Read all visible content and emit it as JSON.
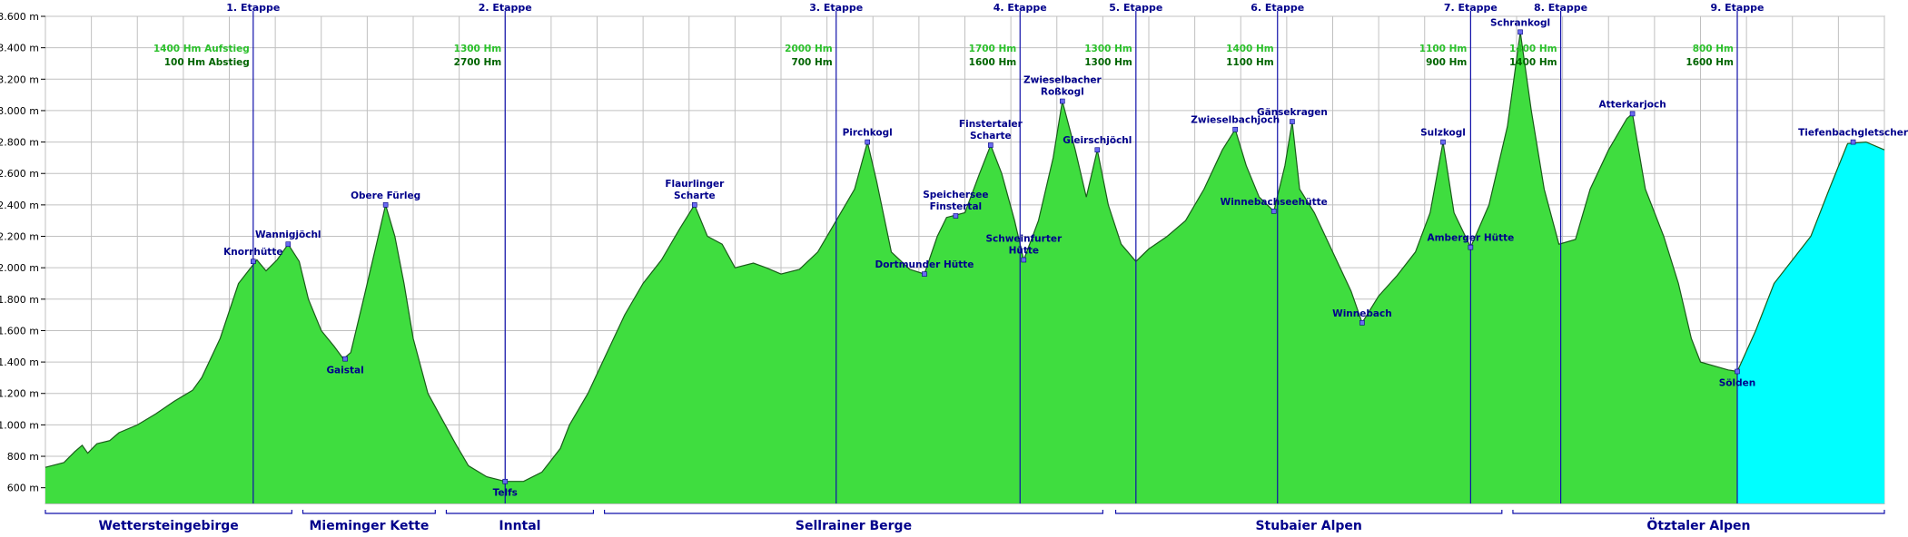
{
  "chart_data": {
    "type": "area",
    "title": "",
    "xlabel": "",
    "ylabel": "",
    "ylim": [
      500,
      3600
    ],
    "xlim": [
      0,
      100
    ],
    "y_unit_suffix": " m",
    "y_ticks": [
      600,
      800,
      1000,
      1200,
      1400,
      1600,
      1800,
      2000,
      2200,
      2400,
      2600,
      2800,
      3000,
      3200,
      3400,
      3600
    ],
    "grid": true,
    "colors": {
      "fill": "#3fdd3f",
      "fill_glacier": "#00ffff",
      "outline": "#1a5c1a",
      "stage_line": "#1010aa",
      "label": "#00008b",
      "gain": "#2bc02b",
      "loss": "#006400",
      "grid": "#c0c0c0"
    },
    "profile": [
      [
        0.0,
        730
      ],
      [
        1.0,
        760
      ],
      [
        1.6,
        830
      ],
      [
        2.0,
        870
      ],
      [
        2.3,
        820
      ],
      [
        2.8,
        880
      ],
      [
        3.5,
        900
      ],
      [
        4.0,
        950
      ],
      [
        5.0,
        1000
      ],
      [
        6.0,
        1070
      ],
      [
        7.0,
        1150
      ],
      [
        8.0,
        1220
      ],
      [
        8.5,
        1300
      ],
      [
        9.5,
        1550
      ],
      [
        10.5,
        1900
      ],
      [
        11.5,
        2050
      ],
      [
        12.0,
        1980
      ],
      [
        12.6,
        2050
      ],
      [
        13.2,
        2150
      ],
      [
        13.8,
        2040
      ],
      [
        14.3,
        1800
      ],
      [
        15.0,
        1600
      ],
      [
        15.7,
        1500
      ],
      [
        16.2,
        1420
      ],
      [
        16.6,
        1460
      ],
      [
        17.3,
        1800
      ],
      [
        18.0,
        2150
      ],
      [
        18.5,
        2400
      ],
      [
        19.0,
        2200
      ],
      [
        19.5,
        1900
      ],
      [
        20.0,
        1550
      ],
      [
        20.8,
        1200
      ],
      [
        21.5,
        1050
      ],
      [
        22.3,
        880
      ],
      [
        23.0,
        740
      ],
      [
        24.0,
        670
      ],
      [
        25.0,
        640
      ],
      [
        26.0,
        640
      ],
      [
        27.0,
        700
      ],
      [
        28.0,
        850
      ],
      [
        28.5,
        1000
      ],
      [
        29.5,
        1200
      ],
      [
        30.5,
        1450
      ],
      [
        31.5,
        1700
      ],
      [
        32.5,
        1900
      ],
      [
        33.5,
        2050
      ],
      [
        34.5,
        2250
      ],
      [
        35.3,
        2400
      ],
      [
        36.0,
        2200
      ],
      [
        36.8,
        2150
      ],
      [
        37.5,
        2000
      ],
      [
        38.5,
        2030
      ],
      [
        39.2,
        2000
      ],
      [
        40.0,
        1960
      ],
      [
        41.0,
        1990
      ],
      [
        42.0,
        2100
      ],
      [
        43.0,
        2300
      ],
      [
        44.0,
        2500
      ],
      [
        44.7,
        2800
      ],
      [
        45.2,
        2550
      ],
      [
        46.0,
        2100
      ],
      [
        47.0,
        1990
      ],
      [
        47.8,
        1960
      ],
      [
        48.5,
        2200
      ],
      [
        49.0,
        2320
      ],
      [
        50.0,
        2350
      ],
      [
        50.8,
        2600
      ],
      [
        51.4,
        2780
      ],
      [
        52.0,
        2600
      ],
      [
        52.7,
        2300
      ],
      [
        53.2,
        2050
      ],
      [
        54.0,
        2300
      ],
      [
        54.8,
        2700
      ],
      [
        55.3,
        3060
      ],
      [
        56.0,
        2750
      ],
      [
        56.6,
        2450
      ],
      [
        57.2,
        2750
      ],
      [
        57.8,
        2400
      ],
      [
        58.5,
        2150
      ],
      [
        59.3,
        2040
      ],
      [
        60.0,
        2120
      ],
      [
        61.0,
        2200
      ],
      [
        62.0,
        2300
      ],
      [
        63.0,
        2500
      ],
      [
        64.0,
        2750
      ],
      [
        64.7,
        2880
      ],
      [
        65.3,
        2650
      ],
      [
        66.0,
        2450
      ],
      [
        66.8,
        2360
      ],
      [
        67.4,
        2650
      ],
      [
        67.8,
        2930
      ],
      [
        68.2,
        2500
      ],
      [
        69.0,
        2350
      ],
      [
        70.0,
        2100
      ],
      [
        71.0,
        1850
      ],
      [
        71.6,
        1650
      ],
      [
        72.5,
        1820
      ],
      [
        73.5,
        1950
      ],
      [
        74.5,
        2100
      ],
      [
        75.3,
        2350
      ],
      [
        76.0,
        2800
      ],
      [
        76.6,
        2350
      ],
      [
        77.5,
        2130
      ],
      [
        78.5,
        2400
      ],
      [
        79.5,
        2900
      ],
      [
        80.2,
        3500
      ],
      [
        80.8,
        3000
      ],
      [
        81.5,
        2500
      ],
      [
        82.3,
        2150
      ],
      [
        83.2,
        2180
      ],
      [
        84.0,
        2500
      ],
      [
        85.0,
        2750
      ],
      [
        86.0,
        2950
      ],
      [
        86.3,
        2980
      ],
      [
        87.0,
        2500
      ],
      [
        88.0,
        2200
      ],
      [
        88.8,
        1900
      ],
      [
        89.5,
        1550
      ],
      [
        90.0,
        1400
      ],
      [
        91.5,
        1350
      ],
      [
        92.0,
        1340
      ]
    ],
    "glacier": [
      [
        92.0,
        1340
      ],
      [
        93.0,
        1600
      ],
      [
        94.0,
        1900
      ],
      [
        95.0,
        2050
      ],
      [
        96.0,
        2200
      ],
      [
        97.0,
        2500
      ],
      [
        98.0,
        2790
      ],
      [
        99.0,
        2800
      ],
      [
        100.0,
        2750
      ]
    ],
    "stages": [
      {
        "x": 11.3,
        "label": "1. Etappe",
        "gain": "1400 Hm Aufstieg",
        "loss": "100 Hm Abstieg"
      },
      {
        "x": 25.0,
        "label": "2. Etappe",
        "gain": "1300 Hm",
        "loss": "2700 Hm"
      },
      {
        "x": 43.0,
        "label": "3. Etappe",
        "gain": "2000 Hm",
        "loss": "700 Hm"
      },
      {
        "x": 53.0,
        "label": "4. Etappe",
        "gain": "1700 Hm",
        "loss": "1600 Hm"
      },
      {
        "x": 59.3,
        "label": "5. Etappe",
        "gain": "1300 Hm",
        "loss": "1300 Hm"
      },
      {
        "x": 67.0,
        "label": "6. Etappe",
        "gain": "1400 Hm",
        "loss": "1100 Hm"
      },
      {
        "x": 77.5,
        "label": "7. Etappe",
        "gain": "1100 Hm",
        "loss": "900 Hm"
      },
      {
        "x": 82.4,
        "label": "8. Etappe",
        "gain": "1400 Hm",
        "loss": "1400 Hm"
      },
      {
        "x": 92.0,
        "label": "9. Etappe",
        "gain": "800 Hm",
        "loss": "1600 Hm"
      }
    ],
    "places": [
      {
        "x": 11.3,
        "y": 2040,
        "label": "Knorrhütte"
      },
      {
        "x": 13.2,
        "y": 2150,
        "label": "Wannigjöchl"
      },
      {
        "x": 16.3,
        "y": 1420,
        "label": "Gaistal"
      },
      {
        "x": 18.5,
        "y": 2400,
        "label": "Obere Fürleg"
      },
      {
        "x": 25.0,
        "y": 640,
        "label": "Telfs"
      },
      {
        "x": 35.3,
        "y": 2400,
        "label": "Flaurlinger Scharte"
      },
      {
        "x": 44.7,
        "y": 2800,
        "label": "Pirchkogl"
      },
      {
        "x": 47.8,
        "y": 1960,
        "label": "Dortmunder Hütte"
      },
      {
        "x": 49.5,
        "y": 2330,
        "label": "Speichersee Finstertal"
      },
      {
        "x": 51.4,
        "y": 2780,
        "label": "Finstertaler Scharte"
      },
      {
        "x": 55.3,
        "y": 3060,
        "label": "Zwieselbacher Roßkogl"
      },
      {
        "x": 53.2,
        "y": 2050,
        "label": "Schweinfurter Hütte"
      },
      {
        "x": 57.2,
        "y": 2750,
        "label": "Gleirschjöchl"
      },
      {
        "x": 64.7,
        "y": 2880,
        "label": "Zwieselbachjoch"
      },
      {
        "x": 67.8,
        "y": 2930,
        "label": "Gänsekragen"
      },
      {
        "x": 66.8,
        "y": 2360,
        "label": "Winnebachseehütte"
      },
      {
        "x": 71.6,
        "y": 1650,
        "label": "Winnebach"
      },
      {
        "x": 76.0,
        "y": 2800,
        "label": "Sulzkogl"
      },
      {
        "x": 77.5,
        "y": 2130,
        "label": "Amberger Hütte"
      },
      {
        "x": 80.2,
        "y": 3500,
        "label": "Schrankogl"
      },
      {
        "x": 86.3,
        "y": 2980,
        "label": "Atterkarjoch"
      },
      {
        "x": 92.0,
        "y": 1340,
        "label": "Sölden"
      },
      {
        "x": 98.3,
        "y": 2800,
        "label": "Tiefenbachgletscher"
      }
    ],
    "regions": [
      {
        "x0": 0.0,
        "x1": 13.4,
        "label": "Wettersteingebirge"
      },
      {
        "x0": 14.0,
        "x1": 21.2,
        "label": "Mieminger Kette"
      },
      {
        "x0": 21.8,
        "x1": 29.8,
        "label": "Inntal"
      },
      {
        "x0": 30.4,
        "x1": 57.5,
        "label": "Sellrainer Berge"
      },
      {
        "x0": 58.2,
        "x1": 79.2,
        "label": "Stubaier Alpen"
      },
      {
        "x0": 79.8,
        "x1": 100.0,
        "label": "Ötztaler Alpen"
      }
    ]
  }
}
